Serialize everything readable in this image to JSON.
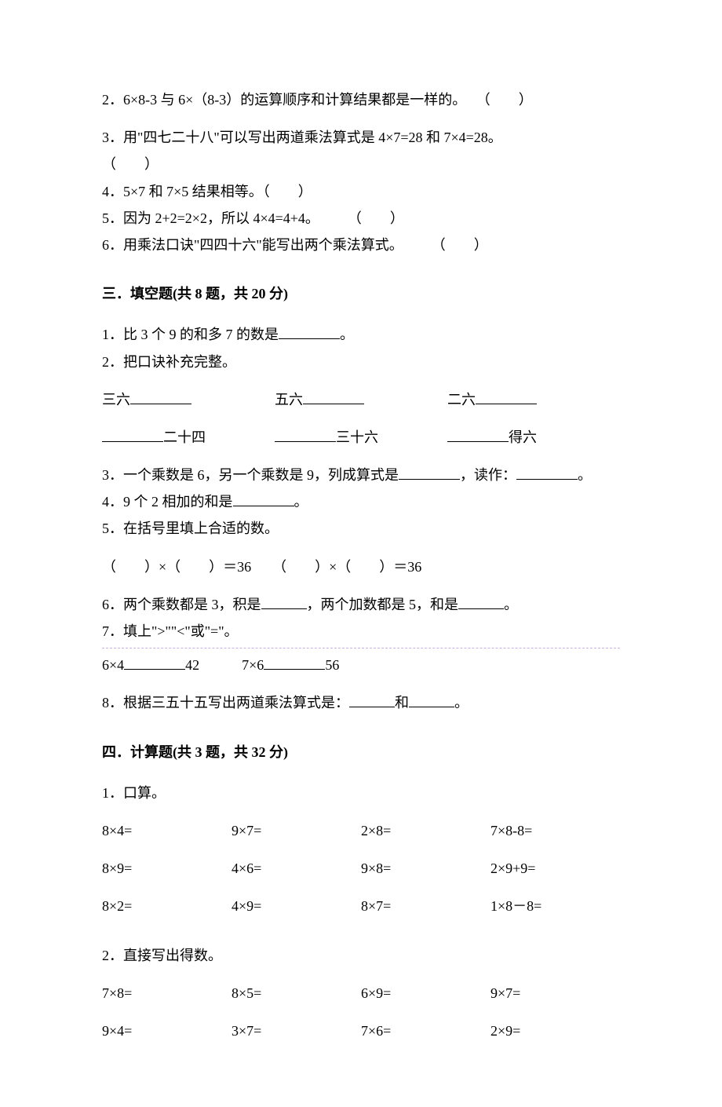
{
  "tf": {
    "q2": "2．6×8-3 与 6×（8-3）的运算顺序和计算结果都是一样的。",
    "q2_paren": "（　　）",
    "q3": "3．用\"四七二十八\"可以写出两道乘法算式是 4×7=28 和 7×4=28。",
    "q3_paren": "（　　）",
    "q4": "4．5×7 和 7×5 结果相等。（　　）",
    "q5": "5．因为 2+2=2×2，所以 4×4=4+4。　　　（　　）",
    "q6": "6．用乘法口诀\"四四十六\"能写出两个乘法算式。　　　（　　）"
  },
  "sec3_header": "三．填空题(共 8 题，共 20 分)",
  "fill": {
    "q1_a": "1．比 3 个 9 的和多 7 的数是",
    "q1_b": "。",
    "q2": "2．把口诀补充完整。",
    "q2_r1_a": "三六",
    "q2_r1_b": "五六",
    "q2_r1_c": "二六",
    "q2_r2_a": "二十四",
    "q2_r2_b": "三十六",
    "q2_r2_c": "得六",
    "q3_a": "3．一个乘数是 6，另一个乘数是 9，列成算式是",
    "q3_b": "，读作：",
    "q3_c": "。",
    "q4_a": "4．9 个 2 相加的和是",
    "q4_b": "。",
    "q5": "5．在括号里填上合适的数。",
    "q5_line": "（　　）×（　　）＝36　　（　　）×（　　）＝36",
    "q6_a": "6．两个乘数都是 3，积是",
    "q6_b": "，两个加数都是 5，和是",
    "q6_c": "。",
    "q7": "7．填上\">\"\"<\"或\"=\"。",
    "q7_line_a": "6×4",
    "q7_line_b": "42　　　7×6",
    "q7_line_c": "56",
    "q8_a": "8．根据三五十五写出两道乘法算式是：",
    "q8_b": "和",
    "q8_c": "。"
  },
  "sec4_header": "四．计算题(共 3 题，共 32 分)",
  "calc": {
    "q1": "1．口算。",
    "q1_rows": [
      [
        "8×4=",
        "9×7=",
        "2×8=",
        "7×8-8="
      ],
      [
        "8×9=",
        "4×6=",
        "9×8=",
        "2×9+9="
      ],
      [
        "8×2=",
        "4×9=",
        "8×7=",
        "1×8－8="
      ]
    ],
    "q2": "2．直接写出得数。",
    "q2_rows": [
      [
        "7×8=",
        "8×5=",
        "6×9=",
        "9×7="
      ],
      [
        "9×4=",
        "3×7=",
        "7×6=",
        "2×9="
      ]
    ]
  }
}
